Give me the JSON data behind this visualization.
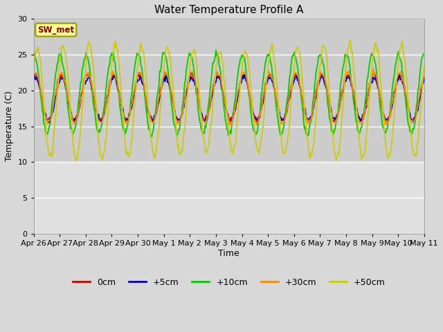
{
  "title": "Water Temperature Profile A",
  "xlabel": "Time",
  "ylabel": "Temperature (C)",
  "ylim": [
    0,
    30
  ],
  "yticks": [
    0,
    5,
    10,
    15,
    20,
    25,
    30
  ],
  "upper_bg_color": "#cccccc",
  "lower_bg_color": "#e0e0e0",
  "grid_color": "#bbbbbb",
  "legend_label": "SW_met",
  "legend_box_color": "#ffff99",
  "legend_box_edge": "#999900",
  "series_labels": [
    "0cm",
    "+5cm",
    "+10cm",
    "+30cm",
    "+50cm"
  ],
  "series_colors": [
    "#cc0000",
    "#0000cc",
    "#00cc00",
    "#ff8800",
    "#cccc00"
  ],
  "tick_labels": [
    "Apr 26",
    "Apr 27",
    "Apr 28",
    "Apr 29",
    "Apr 30",
    "May 1",
    "May 2",
    "May 3",
    "May 4",
    "May 5",
    "May 6",
    "May 7",
    "May 8",
    "May 9",
    "May 10",
    "May 11"
  ],
  "n_points": 500
}
